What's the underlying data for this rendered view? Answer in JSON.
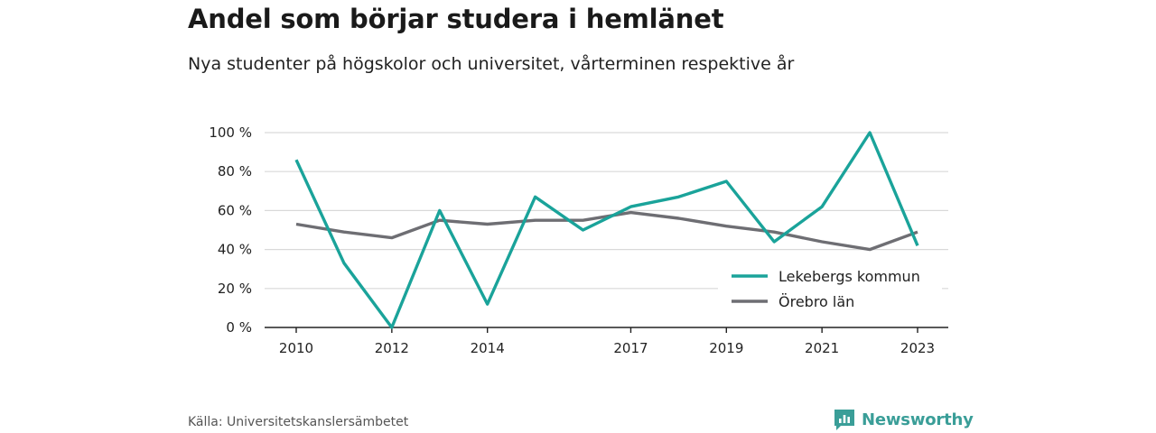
{
  "header": {
    "title": "Andel som börjar studera i hemlänet",
    "subtitle": "Nya studenter på högskolor och universitet, vårterminen respektive år"
  },
  "footer": {
    "source": "Källa: Universitetskanslersämbetet",
    "brand": "Newsworthy"
  },
  "colors": {
    "lekeberg": "#1aa39a",
    "orebro": "#6e6e73",
    "grid": "#d9d9d9",
    "axis": "#222222",
    "brand": "#3a9e98"
  },
  "chart_data": {
    "type": "line",
    "title": "Andel som börjar studera i hemlänet",
    "x": [
      2010,
      2011,
      2012,
      2013,
      2014,
      2015,
      2016,
      2017,
      2018,
      2019,
      2020,
      2021,
      2022,
      2023
    ],
    "x_tick_values": [
      2010,
      2012,
      2014,
      2017,
      2019,
      2021,
      2023
    ],
    "x_tick_labels": [
      "2010",
      "2012",
      "2014",
      "2017",
      "2019",
      "2021",
      "2023"
    ],
    "y_tick_values": [
      0,
      20,
      40,
      60,
      80,
      100
    ],
    "y_tick_labels": [
      "0 %",
      "20 %",
      "40 %",
      "60 %",
      "80 %",
      "100 %"
    ],
    "ylim": [
      0,
      100
    ],
    "grid": true,
    "legend_position": "bottom-right",
    "series": [
      {
        "name": "Lekebergs kommun",
        "color": "#1aa39a",
        "values": [
          86,
          33,
          0,
          60,
          12,
          67,
          50,
          62,
          67,
          75,
          44,
          62,
          100,
          42
        ]
      },
      {
        "name": "Örebro län",
        "color": "#6e6e73",
        "values": [
          53,
          49,
          46,
          55,
          53,
          55,
          55,
          59,
          56,
          52,
          49,
          44,
          40,
          49
        ]
      }
    ]
  }
}
